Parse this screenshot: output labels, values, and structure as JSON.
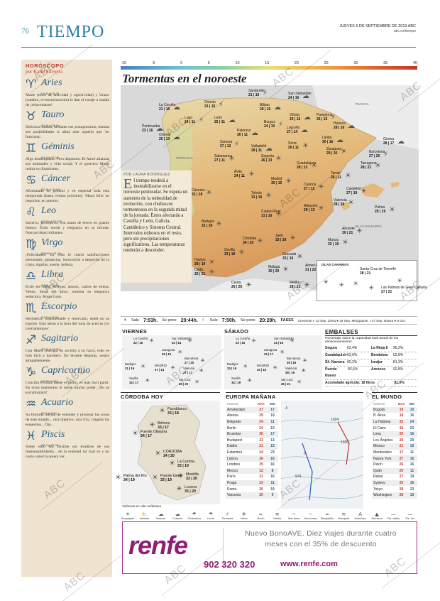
{
  "header": {
    "page_number": "76",
    "section": "TIEMPO",
    "date_line": "JUEVES 5 DE SEPTIEMBRE DE 2013  ABC",
    "site": "abc.es/tiempo"
  },
  "horoscope": {
    "heading": "HORÓSCOPO",
    "author": "por Karin Silveyra",
    "signs": [
      {
        "glyph": "♈",
        "name": "Aries",
        "dates": "(21-III al 20-IV)",
        "text": "Marte (nivel de actividad y agresividad) y Urano (cambio, re-estructuración) le dan el coraje u osadía de ¡reinventarse!"
      },
      {
        "glyph": "♉",
        "name": "Tauro",
        "dates": "(21-IV al 20-V)",
        "text": "Delicioso humor, brillante ese protagonismo, buenas sus posibilidades si afina ante aquello que 'no funciona'."
      },
      {
        "glyph": "♊",
        "name": "Géminis",
        "dates": "(21-V al 21-VI)",
        "text": "Algo destemplado. Pero dispuesto. El Amor alianzas sus amistades y vida social. Y el guerrero Marte realza su dinamismo."
      },
      {
        "glyph": "♋",
        "name": "Cáncer",
        "dates": "(22-VI al 22-VII)",
        "text": "Afortunado en general y en especial toda esta temporada (hasta verano próximo). 'Mano feliz' en negocios, en amores."
      },
      {
        "glyph": "♌",
        "name": "Leo",
        "dates": "(23-VII al 22-VIII)",
        "text": "Incisivo, perceptivo, con mano de hierro en guante blanco. Éxito social y elegancia en su mirada. Nuevas ideas brillantes."
      },
      {
        "glyph": "♍",
        "name": "Virgo",
        "dates": "(23-VIII al 21-IX)",
        "text": "¡Felicidades! La vida le traerá satisfacciones personales, ganancias, innovación a despecho de la crisis. Agallas, suerte, belleza."
      },
      {
        "glyph": "♎",
        "name": "Libra",
        "dates": "(24-IX al 23-X)",
        "text": "Evite los lujos, excesos, abusos, cantos de sirena. Venus, diosa del amor, acentúa su elegancia seductora. Rosas rojas."
      },
      {
        "glyph": "♏",
        "name": "Escorpio",
        "dates": "(24-X al 22-XI)",
        "text": "Hermético, impenetrable y reservado, usted no se expone. Está alerta a la hora del 'ama de acercas y/o contratiempos'."
      },
      {
        "glyph": "♐",
        "name": "Sagitario",
        "dates": "(23-XI al 21-XII)",
        "text": "Con Marte (energía en acción) a su favor, todo es más fácil y hacedero. No levante disputas, sonríe amigablemente."
      },
      {
        "glyph": "♑",
        "name": "Capricornio",
        "dates": "(22-XII al 20-I)",
        "text": "Concilia Fortuna desde el anillo, es más fácil partir. En otros momentos le asiste mucho poder. ¡No se extralimitará!"
      },
      {
        "glyph": "♒",
        "name": "Acuario",
        "dates": "(21-I al 19-II)",
        "text": "Su fórmula mental de entender y procesar las cosas de este mundo... otra objetivo, otra frío, congela los esquemas... Ojo..."
      },
      {
        "glyph": "♓",
        "name": "Piscis",
        "dates": "(20-II al 20-III)",
        "text": "Sobre todo sea flexible sin evadirse de sus responsabilidades... de la realidad tal cual es y no como usted la quiera ver."
      }
    ]
  },
  "scale": {
    "labels": [
      "-10",
      "-5",
      "0",
      "5",
      "10",
      "15",
      "20",
      "25",
      "30",
      "35",
      "40"
    ]
  },
  "map": {
    "title": "Tormentas en el noroeste",
    "regions": [
      "FRANCIA",
      "PORTUGAL",
      "ISLAS BALEARES"
    ],
    "cities": [
      {
        "name": "Santander",
        "temps": "21 | 16"
      },
      {
        "name": "San Sebastián",
        "temps": "24 | 16"
      },
      {
        "name": "La Coruña",
        "temps": "21 | 16"
      },
      {
        "name": "Oviedo",
        "temps": "21 | 15"
      },
      {
        "name": "Bilbao",
        "temps": "28 | 15"
      },
      {
        "name": "Vitoria",
        "temps": "23 | 12"
      },
      {
        "name": "Pamplona",
        "temps": "26 | 15"
      },
      {
        "name": "Huesca",
        "temps": "28 | 16"
      },
      {
        "name": "Girona",
        "temps": "28 | 17"
      },
      {
        "name": "Lugo",
        "temps": "24 | 11"
      },
      {
        "name": "León",
        "temps": "25 | 11"
      },
      {
        "name": "Palencia",
        "temps": "26 | 11"
      },
      {
        "name": "Burgos",
        "temps": "24 | 10"
      },
      {
        "name": "Logroño",
        "temps": "27 | 14"
      },
      {
        "name": "Lleida",
        "temps": "30 | 16"
      },
      {
        "name": "Barcelona",
        "temps": "27 | 20"
      },
      {
        "name": "Pontevedra",
        "temps": "23 | 16"
      },
      {
        "name": "Orense",
        "temps": "26 | 13"
      },
      {
        "name": "Zamora",
        "temps": "27 | 12"
      },
      {
        "name": "Valladolid",
        "temps": "28 | 11"
      },
      {
        "name": "Soria",
        "temps": "26 | 11"
      },
      {
        "name": "Zaragoza",
        "temps": "29 | 16"
      },
      {
        "name": "Tarragona",
        "temps": "28 | 21"
      },
      {
        "name": "Salamanca",
        "temps": "27 | 11"
      },
      {
        "name": "Segovia",
        "temps": "26 | 13"
      },
      {
        "name": "Guadalajara",
        "temps": "28 | 13"
      },
      {
        "name": "Teruel",
        "temps": "26 | 11"
      },
      {
        "name": "Castellón",
        "temps": "27 | 19"
      },
      {
        "name": "Ávila",
        "temps": "24 | 11"
      },
      {
        "name": "Madrid",
        "temps": "30 | 15"
      },
      {
        "name": "Cuenca",
        "temps": "27 | 12"
      },
      {
        "name": "Palma",
        "temps": "29 | 19"
      },
      {
        "name": "Cáceres",
        "temps": "31 | 18"
      },
      {
        "name": "Toledo",
        "temps": "31 | 16"
      },
      {
        "name": "Valencia",
        "temps": "28 | 20"
      },
      {
        "name": "Badajoz",
        "temps": "31 | 16"
      },
      {
        "name": "Ciudad Real",
        "temps": "31 | 16"
      },
      {
        "name": "Albacete",
        "temps": "29 | 13"
      },
      {
        "name": "Alicante",
        "temps": "30 | 21"
      },
      {
        "name": "Córdoba",
        "temps": "34 | 20"
      },
      {
        "name": "Jaén",
        "temps": "33 | 19"
      },
      {
        "name": "Murcia",
        "temps": "32 | 19"
      },
      {
        "name": "Sevilla",
        "temps": "33 | 19"
      },
      {
        "name": "Granada",
        "temps": "33 | 16"
      },
      {
        "name": "Huelva",
        "temps": "28 | 19"
      },
      {
        "name": "Almería",
        "temps": "31 | 22"
      },
      {
        "name": "Málaga",
        "temps": "30 | 20"
      },
      {
        "name": "Cádiz",
        "temps": "26 | 21"
      },
      {
        "name": "Ceuta",
        "temps": "26 | 20"
      },
      {
        "name": "Melilla",
        "temps": "28 | 21"
      }
    ],
    "canarias": {
      "title": "ISLAS CANARIAS",
      "cities": [
        {
          "name": "Santa Cruz de Tenerife",
          "temps": "28 | 21"
        },
        {
          "name": "Las Palmas de Gran Canaria",
          "temps": "27 | 21"
        }
      ]
    }
  },
  "article": {
    "author": "POR LAURA RODRÍGUEZ",
    "dropcap": "E",
    "body": "l tiempo tenderá a inestabilizarse en el noroeste peninsular. Se espera un aumento de la nubosidad de evolución, con chubascos tormentosos en la segunda mitad de la jornada. Estos afectarán a Castilla y León, Galicia, Cantábrico y Sistema Central. Intervalos nubosos en el resto, pero sin precipitaciones significativas. Las temperaturas tenderán a descender."
  },
  "sun_strip": {
    "sun_rise_label": "Sale",
    "sun_rise": "7:53h.",
    "sun_set_label": "Se pone",
    "sun_set": "20:44h.",
    "moon_rise_label": "Sale",
    "moon_rise": "7:50h.",
    "moon_set_label": "Se pone",
    "moon_set": "20:28h.",
    "phases_label": "FASES",
    "phases": "Creciente ◐ 12 Sep.   Llena ● 19 Sep.   Menguante ◑ 27 Sep.   Nueva ● 5 Oct."
  },
  "viernes": {
    "title": "VIERNES",
    "cities": [
      {
        "name": "La Coruña",
        "temps": "22 | 15"
      },
      {
        "name": "San Sebastián",
        "temps": "24 | 14"
      },
      {
        "name": "Zaragoza",
        "temps": "29 | 16"
      },
      {
        "name": "Barcelona",
        "temps": "27 | 20"
      },
      {
        "name": "Badajoz",
        "temps": "31 | 16"
      },
      {
        "name": "MADRID",
        "temps": "27 | 14"
      },
      {
        "name": "Valencia",
        "temps": "27 | 17"
      },
      {
        "name": "Sevilla",
        "temps": "34 | 17"
      },
      {
        "name": "Sta Cruz",
        "temps": "26 | 20"
      }
    ]
  },
  "sabado": {
    "title": "SÁBADO",
    "cities": [
      {
        "name": "La Coruña",
        "temps": "23 | 15"
      },
      {
        "name": "San Sebastián",
        "temps": "24 | 16"
      },
      {
        "name": "Zaragoza",
        "temps": "32 | 17"
      },
      {
        "name": "Barcelona",
        "temps": "29 | 19"
      },
      {
        "name": "Badajoz",
        "temps": "33 | 16"
      },
      {
        "name": "MADRID",
        "temps": "30 | 16"
      },
      {
        "name": "Valencia",
        "temps": "28 | 19"
      },
      {
        "name": "Sevilla",
        "temps": "34 | 19"
      },
      {
        "name": "Sta Cruz",
        "temps": "26 | 21"
      }
    ]
  },
  "embalses": {
    "title": "EMBALSES",
    "subtitle": "Porcentaje sobre la capacidad total actual de los almacenamientos",
    "rows": [
      [
        "Segura",
        "63,4%",
        "La Rioja II",
        "96,2%"
      ],
      [
        "Guadalquivir",
        "63,6%",
        "Bembézar",
        "62,8%"
      ],
      [
        "Sil. Navarra",
        "60,2%",
        "Iznájar",
        "81,3%"
      ],
      [
        "Puente Nuevo",
        "83,6%",
        "Arenoso",
        "92,8%"
      ]
    ],
    "total": [
      "Acumulado agrícola: 18 litros",
      "81,0%"
    ]
  },
  "cordoba": {
    "title": "CÓRDOBA HOY",
    "cities": [
      {
        "name": "Pozoblanco",
        "temps": "33 | 18"
      },
      {
        "name": "Bélmez",
        "temps": "33 | 17"
      },
      {
        "name": "Fuente Obejuna",
        "temps": "34 | 17"
      },
      {
        "name": "CÓRDOBA",
        "temps": "34 | 20"
      },
      {
        "name": "La Carlota",
        "temps": "33 | 19"
      },
      {
        "name": "Palma del Río",
        "temps": "34 | 19"
      },
      {
        "name": "Montilla",
        "temps": "33 | 20"
      },
      {
        "name": "Puente Genil",
        "temps": "33 | 19"
      },
      {
        "name": "Lucena",
        "temps": "33 | 20"
      }
    ],
    "footer": "Visítenos en: abc.es/tiempo"
  },
  "europe": {
    "title": "EUROPA MAÑANA",
    "head": [
      "CIUDAD",
      "MAX",
      "MIN"
    ],
    "rows": [
      [
        "Amsterdam",
        "27",
        "17"
      ],
      [
        "Atenas",
        "29",
        "19"
      ],
      [
        "Belgrado",
        "24",
        "11"
      ],
      [
        "Berlín",
        "24",
        "13"
      ],
      [
        "Bruselas",
        "30",
        "17"
      ],
      [
        "Budapest",
        "23",
        "13"
      ],
      [
        "Dublín",
        "21",
        "13"
      ],
      [
        "Estambul",
        "24",
        "23"
      ],
      [
        "Lisboa",
        "26",
        "16"
      ],
      [
        "Londres",
        "29",
        "16"
      ],
      [
        "Moscú",
        "12",
        "8"
      ],
      [
        "París",
        "31",
        "16"
      ],
      [
        "Praga",
        "23",
        "11"
      ],
      [
        "Roma",
        "26",
        "19"
      ],
      [
        "Varsovia",
        "20",
        "9"
      ]
    ],
    "pressure_labels": [
      "A",
      "B",
      "1026",
      "974",
      "1024"
    ]
  },
  "world": {
    "title": "EL MUNDO",
    "head": [
      "CIUDAD",
      "MAX",
      "MIN"
    ],
    "rows": [
      [
        "Bogotá",
        "19",
        "10"
      ],
      [
        "B. Aires",
        "18",
        "16"
      ],
      [
        "La Habana",
        "32",
        "24"
      ],
      [
        "El Cairo",
        "34",
        "23"
      ],
      [
        "Lima",
        "20",
        "16"
      ],
      [
        "Los Ángeles",
        "26",
        "20"
      ],
      [
        "México",
        "21",
        "15"
      ],
      [
        "Montevideo",
        "17",
        "11"
      ],
      [
        "Nueva York",
        "27",
        "16"
      ],
      [
        "Pekín",
        "26",
        "16"
      ],
      [
        "Quito",
        "20",
        "11"
      ],
      [
        "Rabat",
        "27",
        "19"
      ],
      [
        "Sydney",
        "25",
        "16"
      ],
      [
        "Tokyo",
        "29",
        "23"
      ],
      [
        "Washington",
        "28",
        "16"
      ]
    ]
  },
  "legend": [
    {
      "icon": "☀",
      "label": "Despejado"
    },
    {
      "icon": "⛅",
      "label": "Variable"
    },
    {
      "icon": "☁",
      "label": "Nuboso"
    },
    {
      "icon": "☁",
      "label": "Cubierto"
    },
    {
      "icon": "☂",
      "label": "Chubascos"
    },
    {
      "icon": "☂",
      "label": "Lluvia"
    },
    {
      "icon": "⚡",
      "label": "Tormenta"
    },
    {
      "icon": "❄",
      "label": "Nieve"
    },
    {
      "icon": "≈",
      "label": "Viento"
    },
    {
      "icon": "≋",
      "label": "Niebla"
    },
    {
      "icon": "~",
      "label": "Mar llana"
    },
    {
      "icon": "~",
      "label": "Mar rizada"
    },
    {
      "icon": "≈",
      "label": "Marejadilla"
    },
    {
      "icon": "≋",
      "label": "Marejada"
    },
    {
      "icon": "A",
      "label": "Anticiclón"
    },
    {
      "icon": "▲",
      "label": "Borrasca"
    },
    {
      "icon": "—",
      "label": "Fte. cálido"
    },
    {
      "icon": "—",
      "label": "Fte. frío"
    }
  ],
  "ad": {
    "logo": "renfe",
    "line1": "Nuevo BonoAVE. Diez viajes durante cuatro",
    "line2": "meses con el 35% de descuento",
    "phone": "902 320 320",
    "web": "www.renfe.com"
  },
  "watermark": "ABC",
  "colors": {
    "accent": "#2c7fa3",
    "sign_blue": "#2b5f86",
    "horoscope_bg": "#efe4cf",
    "max_red": "#c0392b",
    "min_blue": "#2b5f86",
    "renfe_purple": "#8e1d73"
  }
}
